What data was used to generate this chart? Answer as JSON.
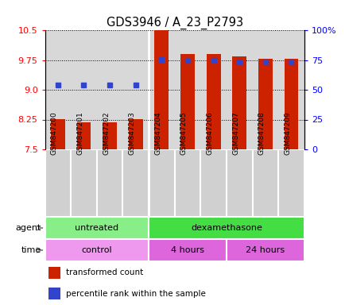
{
  "title": "GDS3946 / A_23_P2793",
  "samples": [
    "GSM847200",
    "GSM847201",
    "GSM847202",
    "GSM847203",
    "GSM847204",
    "GSM847205",
    "GSM847206",
    "GSM847207",
    "GSM847208",
    "GSM847209"
  ],
  "transformed_count": [
    8.26,
    8.19,
    8.19,
    8.26,
    10.5,
    9.9,
    9.9,
    9.84,
    9.79,
    9.79
  ],
  "percentile_rank": [
    9.12,
    9.12,
    9.12,
    9.12,
    9.76,
    9.74,
    9.74,
    9.7,
    9.7,
    9.7
  ],
  "ylim": [
    7.5,
    10.5
  ],
  "yticks_left": [
    7.5,
    8.25,
    9.0,
    9.75,
    10.5
  ],
  "yticks_right_pct": [
    0,
    25,
    50,
    75,
    100
  ],
  "bar_color": "#cc2200",
  "dot_color": "#3344cc",
  "agent_groups": [
    {
      "label": "untreated",
      "start": 0,
      "end": 4,
      "color": "#88ee88"
    },
    {
      "label": "dexamethasone",
      "start": 4,
      "end": 10,
      "color": "#44dd44"
    }
  ],
  "time_groups": [
    {
      "label": "control",
      "start": 0,
      "end": 4,
      "color": "#ee99ee"
    },
    {
      "label": "4 hours",
      "start": 4,
      "end": 7,
      "color": "#dd66dd"
    },
    {
      "label": "24 hours",
      "start": 7,
      "end": 10,
      "color": "#dd66dd"
    }
  ],
  "legend_bar_label": "transformed count",
  "legend_dot_label": "percentile rank within the sample",
  "bar_width": 0.55,
  "cell_bg": "#cccccc",
  "cell_bg_alt": "#dddddd"
}
